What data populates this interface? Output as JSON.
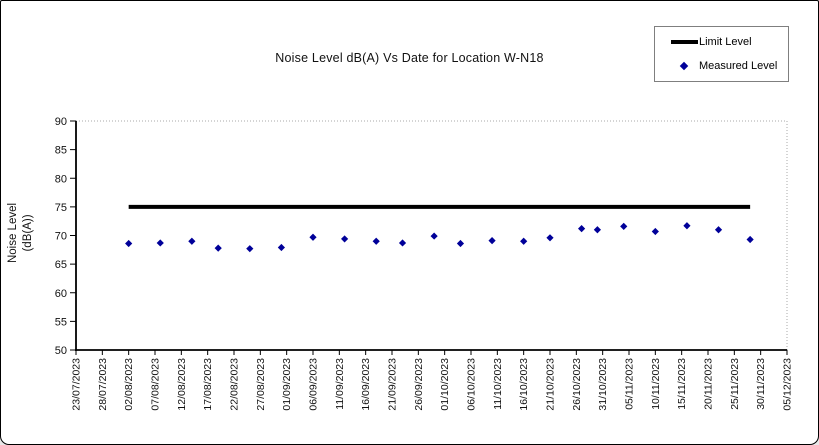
{
  "window": {
    "background": "#ffffff",
    "frame_border_color": "#000000"
  },
  "chart_data": {
    "type": "scatter",
    "title": "Noise Level dB(A) Vs Date for Location W-N18",
    "ylabel_line1": "Noise Level",
    "ylabel_line2": "(dB(A))",
    "xlabel": "",
    "ylim": [
      50,
      90
    ],
    "ytick_step": 5,
    "grid": false,
    "x_axis_start": "23/07/2023",
    "x_axis_end": "05/12/2023",
    "x_ticks": [
      "23/07/2023",
      "28/07/2023",
      "02/08/2023",
      "07/08/2023",
      "12/08/2023",
      "17/08/2023",
      "22/08/2023",
      "27/08/2023",
      "01/09/2023",
      "06/09/2023",
      "11/09/2023",
      "16/09/2023",
      "21/09/2023",
      "26/09/2023",
      "01/10/2023",
      "06/10/2023",
      "11/10/2023",
      "16/10/2023",
      "21/10/2023",
      "26/10/2023",
      "31/10/2023",
      "05/11/2023",
      "10/11/2023",
      "15/11/2023",
      "20/11/2023",
      "25/11/2023",
      "30/11/2023",
      "05/12/2023"
    ],
    "legend": {
      "position": "top-right",
      "entries": [
        {
          "label": "Limit Level",
          "type": "line",
          "color": "#000000"
        },
        {
          "label": "Measured Level",
          "type": "diamond",
          "color": "#000099"
        }
      ]
    },
    "limit_level": 75,
    "limit_span": [
      "02/08/2023",
      "28/11/2023"
    ],
    "series": [
      {
        "name": "Limit Level",
        "type": "line",
        "color": "#000000",
        "value": 75
      },
      {
        "name": "Measured Level",
        "type": "diamond",
        "color": "#000099",
        "points": [
          {
            "date": "02/08/2023",
            "value": 68.6
          },
          {
            "date": "08/08/2023",
            "value": 68.7
          },
          {
            "date": "14/08/2023",
            "value": 69.0
          },
          {
            "date": "19/08/2023",
            "value": 67.8
          },
          {
            "date": "25/08/2023",
            "value": 67.7
          },
          {
            "date": "31/08/2023",
            "value": 67.9
          },
          {
            "date": "06/09/2023",
            "value": 69.7
          },
          {
            "date": "12/09/2023",
            "value": 69.4
          },
          {
            "date": "18/09/2023",
            "value": 69.0
          },
          {
            "date": "23/09/2023",
            "value": 68.7
          },
          {
            "date": "29/09/2023",
            "value": 69.9
          },
          {
            "date": "04/10/2023",
            "value": 68.6
          },
          {
            "date": "10/10/2023",
            "value": 69.1
          },
          {
            "date": "16/10/2023",
            "value": 69.0
          },
          {
            "date": "21/10/2023",
            "value": 69.6
          },
          {
            "date": "27/10/2023",
            "value": 71.2
          },
          {
            "date": "30/10/2023",
            "value": 71.0
          },
          {
            "date": "04/11/2023",
            "value": 71.6
          },
          {
            "date": "10/11/2023",
            "value": 70.7
          },
          {
            "date": "16/11/2023",
            "value": 71.7
          },
          {
            "date": "22/11/2023",
            "value": 71.0
          },
          {
            "date": "28/11/2023",
            "value": 69.3
          }
        ]
      }
    ]
  }
}
